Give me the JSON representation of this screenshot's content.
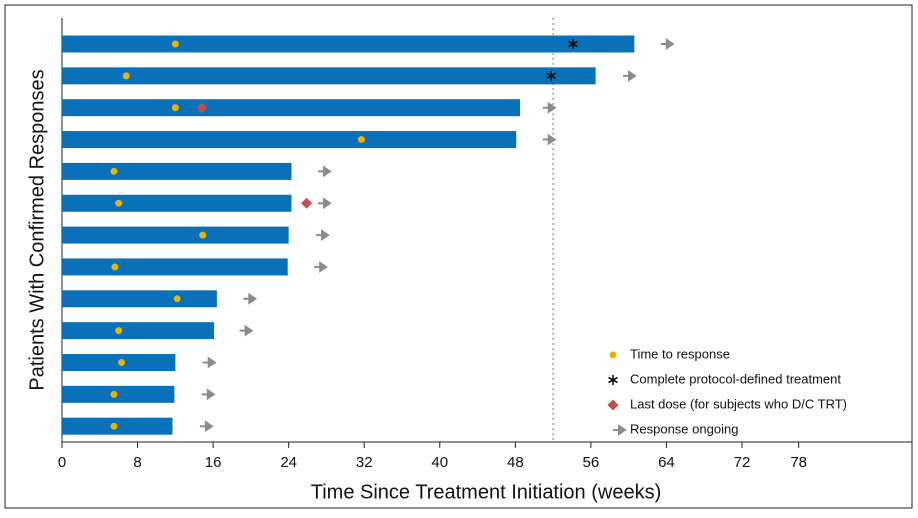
{
  "chart_data": {
    "type": "swimmer",
    "x_label": "Time Since Treatment Initiation (weeks)",
    "y_label": "Patients With Confirmed Responses",
    "xlim": [
      0,
      90
    ],
    "xticks": [
      0,
      8,
      16,
      24,
      32,
      40,
      48,
      56,
      64,
      72,
      78
    ],
    "reference_line": 52,
    "bars": {
      "color": "#0a70b8",
      "values": [
        60.6,
        56.5,
        48.5,
        48.1,
        24.3,
        24.3,
        24.0,
        23.9,
        16.4,
        16.1,
        12.0,
        11.9,
        11.7
      ]
    },
    "series": [
      {
        "name": "Time to response",
        "marker": "dot",
        "color": "#e8b400",
        "values": [
          12.0,
          6.8,
          12.0,
          31.7,
          5.5,
          6.0,
          14.9,
          5.6,
          12.2,
          6.0,
          6.3,
          5.5,
          5.5
        ]
      },
      {
        "name": "Complete protocol-defined treatment",
        "marker": "asterisk",
        "color": "#111111",
        "values": [
          54.1,
          51.8,
          null,
          null,
          null,
          null,
          null,
          null,
          null,
          null,
          null,
          null,
          null
        ]
      },
      {
        "name": "Last dose (for subjects who D/C TRT)",
        "marker": "diamond",
        "color": "#c0504d",
        "values": [
          null,
          null,
          14.8,
          null,
          null,
          25.9,
          null,
          null,
          null,
          null,
          null,
          null,
          null
        ]
      },
      {
        "name": "Response ongoing",
        "marker": "arrow",
        "color": "#8c8c8c",
        "values": [
          63.4,
          59.4,
          50.9,
          50.9,
          27.1,
          27.1,
          26.9,
          26.7,
          19.2,
          18.8,
          14.9,
          14.8,
          14.6
        ]
      }
    ]
  }
}
